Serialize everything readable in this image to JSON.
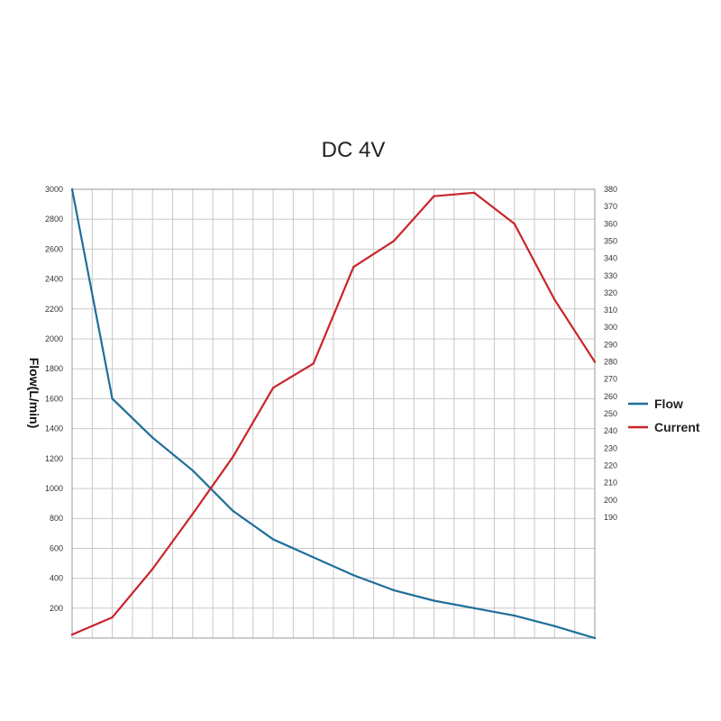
{
  "chart_data": {
    "type": "line",
    "title": "DC 4V",
    "xlabel": "",
    "ylabel": "Flow(L/min)",
    "y2label": "",
    "ylim": [
      0,
      3000
    ],
    "y2lim": [
      120,
      380
    ],
    "xlim": [
      0,
      13
    ],
    "grid": true,
    "legend_position": "right",
    "y_ticks": [
      "200",
      "400",
      "600",
      "800",
      "1000",
      "1200",
      "1400",
      "1600",
      "1800",
      "2000",
      "2200",
      "2400",
      "2600",
      "2800",
      "3000"
    ],
    "y2_ticks": [
      "190",
      "200",
      "210",
      "220",
      "230",
      "240",
      "250",
      "260",
      "270",
      "280",
      "290",
      "300",
      "310",
      "320",
      "330",
      "340",
      "350",
      "360",
      "370",
      "380"
    ],
    "x": [
      0,
      1,
      2,
      3,
      4,
      5,
      6,
      7,
      8,
      9,
      10,
      11,
      12,
      13
    ],
    "series": [
      {
        "name": "Flow",
        "axis": "left",
        "color": "#1f6e9b",
        "values": [
          3000,
          1600,
          1340,
          1120,
          850,
          660,
          540,
          420,
          320,
          250,
          200,
          150,
          80,
          0
        ]
      },
      {
        "name": "Current",
        "axis": "right",
        "color": "#c9252c",
        "values": [
          122,
          132,
          160,
          192,
          225,
          265,
          279,
          335,
          350,
          376,
          378,
          360,
          316,
          280
        ]
      }
    ]
  }
}
